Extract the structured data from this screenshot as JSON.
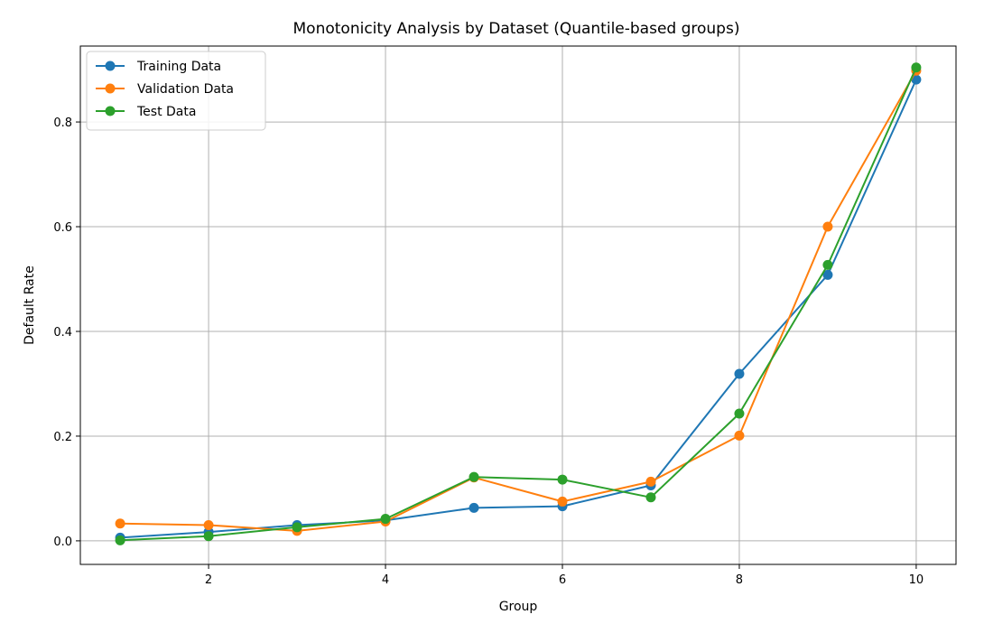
{
  "chart_data": {
    "type": "line",
    "title": "Monotonicity Analysis by Dataset (Quantile-based groups)",
    "xlabel": "Group",
    "ylabel": "Default Rate",
    "xlim": [
      0.55,
      10.45
    ],
    "ylim": [
      -0.045,
      0.945
    ],
    "xticks": [
      2,
      4,
      6,
      8,
      10
    ],
    "yticks": [
      0.0,
      0.2,
      0.4,
      0.6,
      0.8
    ],
    "xtick_labels": [
      "2",
      "4",
      "6",
      "8",
      "10"
    ],
    "ytick_labels": [
      "0.0",
      "0.2",
      "0.4",
      "0.6",
      "0.8"
    ],
    "grid": true,
    "legend_position": "top-left",
    "x": [
      1,
      2,
      3,
      4,
      5,
      6,
      7,
      8,
      9,
      10
    ],
    "series": [
      {
        "name": "Training Data",
        "color": "#1f77b4",
        "values": [
          0.006,
          0.017,
          0.03,
          0.039,
          0.063,
          0.066,
          0.106,
          0.319,
          0.508,
          0.881
        ]
      },
      {
        "name": "Validation Data",
        "color": "#ff7f0e",
        "values": [
          0.033,
          0.03,
          0.019,
          0.037,
          0.121,
          0.075,
          0.113,
          0.201,
          0.6,
          0.898
        ]
      },
      {
        "name": "Test Data",
        "color": "#2ca02c",
        "values": [
          0.001,
          0.009,
          0.026,
          0.042,
          0.122,
          0.117,
          0.083,
          0.243,
          0.527,
          0.904
        ]
      }
    ]
  }
}
